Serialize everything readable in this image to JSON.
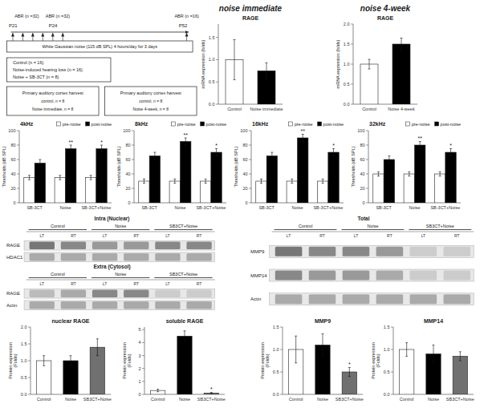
{
  "chart_data": [
    {
      "type": "diagram",
      "annotations": [
        "P21",
        "P24",
        "P52",
        "ABR (n =32)",
        "ABR (n =32)",
        "ABR (n =16)",
        "White Gaussian noise (115 dB SPL) 4 hours/day for 3 days",
        "Control (n = 16)",
        "Noise-induced hearing loss (n = 16)",
        "Noise + SB-3CT (n = 8)",
        "Primary auditory cortex harvest",
        "control, n = 8",
        "Noise immediate, n = 8",
        "Primary auditory cortex harvest",
        "control, n = 8",
        "Noise 4-week, n = 8"
      ]
    },
    {
      "type": "bar",
      "title": "RAGE",
      "subtitle": "noise immediate",
      "categories": [
        "Control",
        "Noise immediate"
      ],
      "values": [
        1.0,
        0.75
      ],
      "errors": [
        0.45,
        0.18
      ],
      "colors": [
        "white",
        "black"
      ],
      "y_label": "mRNA expression (folds)",
      "ylim": [
        0,
        1.8
      ],
      "yticks": [
        {
          "value": 0.0,
          "label": "0.0"
        },
        0.5,
        {
          "value": 1.0,
          "label": "1.0"
        },
        1.5
      ]
    },
    {
      "type": "bar",
      "title": "RAGE",
      "subtitle": "noise 4-week",
      "categories": [
        "Control",
        "Noise 4-week"
      ],
      "values": [
        1.0,
        1.5
      ],
      "errors": [
        0.12,
        0.15
      ],
      "colors": [
        "white",
        "black"
      ],
      "y_label": "mRNA expression (folds)",
      "ylim": [
        0,
        2.0
      ],
      "yticks": [
        {
          "value": 0.0,
          "label": "0.0"
        },
        0.5,
        {
          "value": 1.0,
          "label": "1.0"
        },
        1.5,
        {
          "value": 2.0,
          "label": "2.0"
        }
      ]
    },
    {
      "type": "bar",
      "title": "4kHz",
      "categories": [
        "SB-3CT",
        "Noise",
        "SB-3CT+Noise"
      ],
      "series": [
        {
          "name": "pre-noise",
          "color": "white",
          "values": [
            35,
            35,
            35
          ],
          "errors": [
            3,
            3,
            3
          ]
        },
        {
          "name": "post-noise",
          "color": "black",
          "values": [
            55,
            75,
            75
          ],
          "errors": [
            5,
            5,
            5
          ]
        }
      ],
      "y_label": "Thresholds (dB SPL)",
      "ylim": [
        0,
        100
      ],
      "yticks": [
        0,
        20,
        40,
        60,
        80,
        100
      ],
      "legend": "upper right",
      "annotations": [
        {
          "text": "**",
          "category": "Noise",
          "series": "post-noise"
        },
        {
          "text": "*",
          "category": "SB-3CT+Noise",
          "series": "post-noise"
        }
      ]
    },
    {
      "type": "bar",
      "title": "8kHz",
      "categories": [
        "SB-3CT",
        "Noise",
        "SB-3CT+Noise"
      ],
      "series": [
        {
          "name": "pre-noise",
          "color": "white",
          "values": [
            30,
            30,
            30
          ],
          "errors": [
            3,
            3,
            3
          ]
        },
        {
          "name": "post-noise",
          "color": "black",
          "values": [
            65,
            85,
            70
          ],
          "errors": [
            5,
            5,
            5
          ]
        }
      ],
      "y_label": "Thresholds (dB SPL)",
      "ylim": [
        0,
        100
      ],
      "yticks": [
        0,
        20,
        40,
        60,
        80,
        100
      ],
      "legend": "upper right",
      "annotations": [
        {
          "text": "**",
          "category": "Noise",
          "series": "post-noise"
        },
        {
          "text": "*",
          "category": "SB-3CT+Noise",
          "series": "post-noise"
        }
      ]
    },
    {
      "type": "bar",
      "title": "16kHz",
      "categories": [
        "SB-3CT",
        "Noise",
        "SB-3CT+Noise"
      ],
      "series": [
        {
          "name": "pre-noise",
          "color": "white",
          "values": [
            30,
            30,
            30
          ],
          "errors": [
            3,
            3,
            3
          ]
        },
        {
          "name": "post-noise",
          "color": "black",
          "values": [
            65,
            90,
            70
          ],
          "errors": [
            5,
            5,
            5
          ]
        }
      ],
      "y_label": "Thresholds (dB SPL)",
      "ylim": [
        0,
        100
      ],
      "yticks": [
        0,
        20,
        40,
        60,
        80,
        100
      ],
      "legend": "upper right",
      "annotations": [
        {
          "text": "**",
          "category": "Noise",
          "series": "post-noise"
        },
        {
          "text": "*",
          "category": "SB-3CT+Noise",
          "series": "post-noise"
        }
      ]
    },
    {
      "type": "bar",
      "title": "32kHz",
      "categories": [
        "SB-3CT",
        "Noise",
        "SB-3CT+Noise"
      ],
      "series": [
        {
          "name": "pre-noise",
          "color": "white",
          "values": [
            40,
            40,
            40
          ],
          "errors": [
            3,
            3,
            3
          ]
        },
        {
          "name": "post-noise",
          "color": "black",
          "values": [
            60,
            80,
            70
          ],
          "errors": [
            5,
            5,
            5
          ]
        }
      ],
      "y_label": "Thresholds (dB SPL)",
      "ylim": [
        0,
        100
      ],
      "yticks": [
        0,
        20,
        40,
        60,
        80,
        100
      ],
      "legend": "upper right",
      "annotations": [
        {
          "text": "**",
          "category": "Noise",
          "series": "post-noise"
        },
        {
          "text": "*",
          "category": "SB-3CT+Noise",
          "series": "post-noise"
        }
      ]
    },
    {
      "type": "blot",
      "title": "Intra (Nuclear)",
      "categories": [
        "LT",
        "RT",
        "LT",
        "RT",
        "LT",
        "RT"
      ],
      "annotations": [
        "Control",
        "Noise",
        "SB3CT+Noise"
      ],
      "series": [
        {
          "name": "RAGE",
          "colors": [
            "#777777",
            "#888888",
            "#999999",
            "#999999",
            "#888888",
            "#888888"
          ]
        },
        {
          "name": "HDAC1",
          "colors": [
            "#aaaaaa",
            "#aaaaaa",
            "#aaaaaa",
            "#aaaaaa",
            "#aaaaaa",
            "#aaaaaa"
          ]
        }
      ]
    },
    {
      "type": "blot",
      "title": "Extra (Cytosol)",
      "categories": [
        "LT",
        "RT",
        "LT",
        "RT",
        "LT",
        "RT"
      ],
      "annotations": [
        "Control",
        "Noise",
        "SB3CT+Noise"
      ],
      "series": [
        {
          "name": "RAGE",
          "colors": [
            "#bbbbbb",
            "#aaaaaa",
            "#888888",
            "#888888",
            "#cccccc",
            "#cccccc"
          ]
        },
        {
          "name": "Actin",
          "colors": [
            "#aaaaaa",
            "#aaaaaa",
            "#aaaaaa",
            "#aaaaaa",
            "#aaaaaa",
            "#aaaaaa"
          ]
        }
      ]
    },
    {
      "type": "blot",
      "title": "Total",
      "categories": [
        "LT",
        "RT",
        "LT",
        "RT",
        "LT",
        "RT"
      ],
      "annotations": [
        "Control",
        "Noise",
        "SB3CT+Noise"
      ],
      "series": [
        {
          "name": "MMP9",
          "colors": [
            "#777777",
            "#888888",
            "#888888",
            "#999999",
            "#cccccc",
            "#cccccc"
          ]
        },
        {
          "name": "MMP14",
          "colors": [
            "#888888",
            "#999999",
            "#999999",
            "#aaaaaa",
            "#cccccc",
            "#cccccc"
          ]
        },
        {
          "name": "Actin",
          "colors": [
            "#aaaaaa",
            "#aaaaaa",
            "#aaaaaa",
            "#aaaaaa",
            "#aaaaaa",
            "#aaaaaa"
          ]
        }
      ]
    },
    {
      "type": "bar",
      "title": "nuclear RAGE",
      "categories": [
        "Control",
        "Noise",
        "SB3CT+Noise"
      ],
      "values": [
        1.0,
        1.0,
        1.4
      ],
      "errors": [
        0.15,
        0.15,
        0.25
      ],
      "colors": [
        "white",
        "black",
        "#707070"
      ],
      "y_label": "Protein expression\n(Folds)",
      "ylim": [
        0,
        2.0
      ],
      "yticks": [
        {
          "value": 0.0,
          "label": "0.0"
        },
        0.5,
        {
          "value": 1.0,
          "label": "1.0"
        },
        1.5,
        {
          "value": 2.0,
          "label": "2.0"
        }
      ]
    },
    {
      "type": "bar",
      "title": "soluble RAGE",
      "categories": [
        "Control",
        "Noise",
        "SB3CT+Noise"
      ],
      "values": [
        0.3,
        4.5,
        0.1
      ],
      "errors": [
        0.1,
        0.4,
        0.05
      ],
      "colors": [
        "white",
        "black",
        "#707070"
      ],
      "y_label": "Protein expression\n(Folds)",
      "ylim": [
        0,
        5.2
      ],
      "yticks": [
        0,
        1,
        2,
        3,
        4,
        5
      ],
      "annotations": [
        {
          "text": "*",
          "category": "SB3CT+Noise"
        }
      ]
    },
    {
      "type": "bar",
      "title": "MMP9",
      "categories": [
        "Control",
        "Noise",
        "SB3CT+Noise"
      ],
      "values": [
        1.0,
        1.1,
        0.5
      ],
      "errors": [
        0.3,
        0.25,
        0.1
      ],
      "colors": [
        "white",
        "black",
        "#707070"
      ],
      "y_label": "Protein expression\n(Folds)",
      "ylim": [
        0,
        1.5
      ],
      "yticks": [
        {
          "value": 0.0,
          "label": "0.0"
        },
        0.5,
        {
          "value": 1.0,
          "label": "1.0"
        },
        1.5
      ],
      "annotations": [
        {
          "text": "*",
          "category": "SB3CT+Noise"
        }
      ]
    },
    {
      "type": "bar",
      "title": "MMP14",
      "categories": [
        "Control",
        "Noise",
        "SB3CT+Noise"
      ],
      "values": [
        1.0,
        0.9,
        0.85
      ],
      "errors": [
        0.15,
        0.2,
        0.1
      ],
      "colors": [
        "white",
        "black",
        "#707070"
      ],
      "y_label": "Protein expression\n(Folds)",
      "ylim": [
        0,
        1.5
      ],
      "yticks": [
        {
          "value": 0.0,
          "label": "0.0"
        },
        0.5,
        {
          "value": 1.0,
          "label": "1.0"
        },
        1.5
      ]
    }
  ]
}
